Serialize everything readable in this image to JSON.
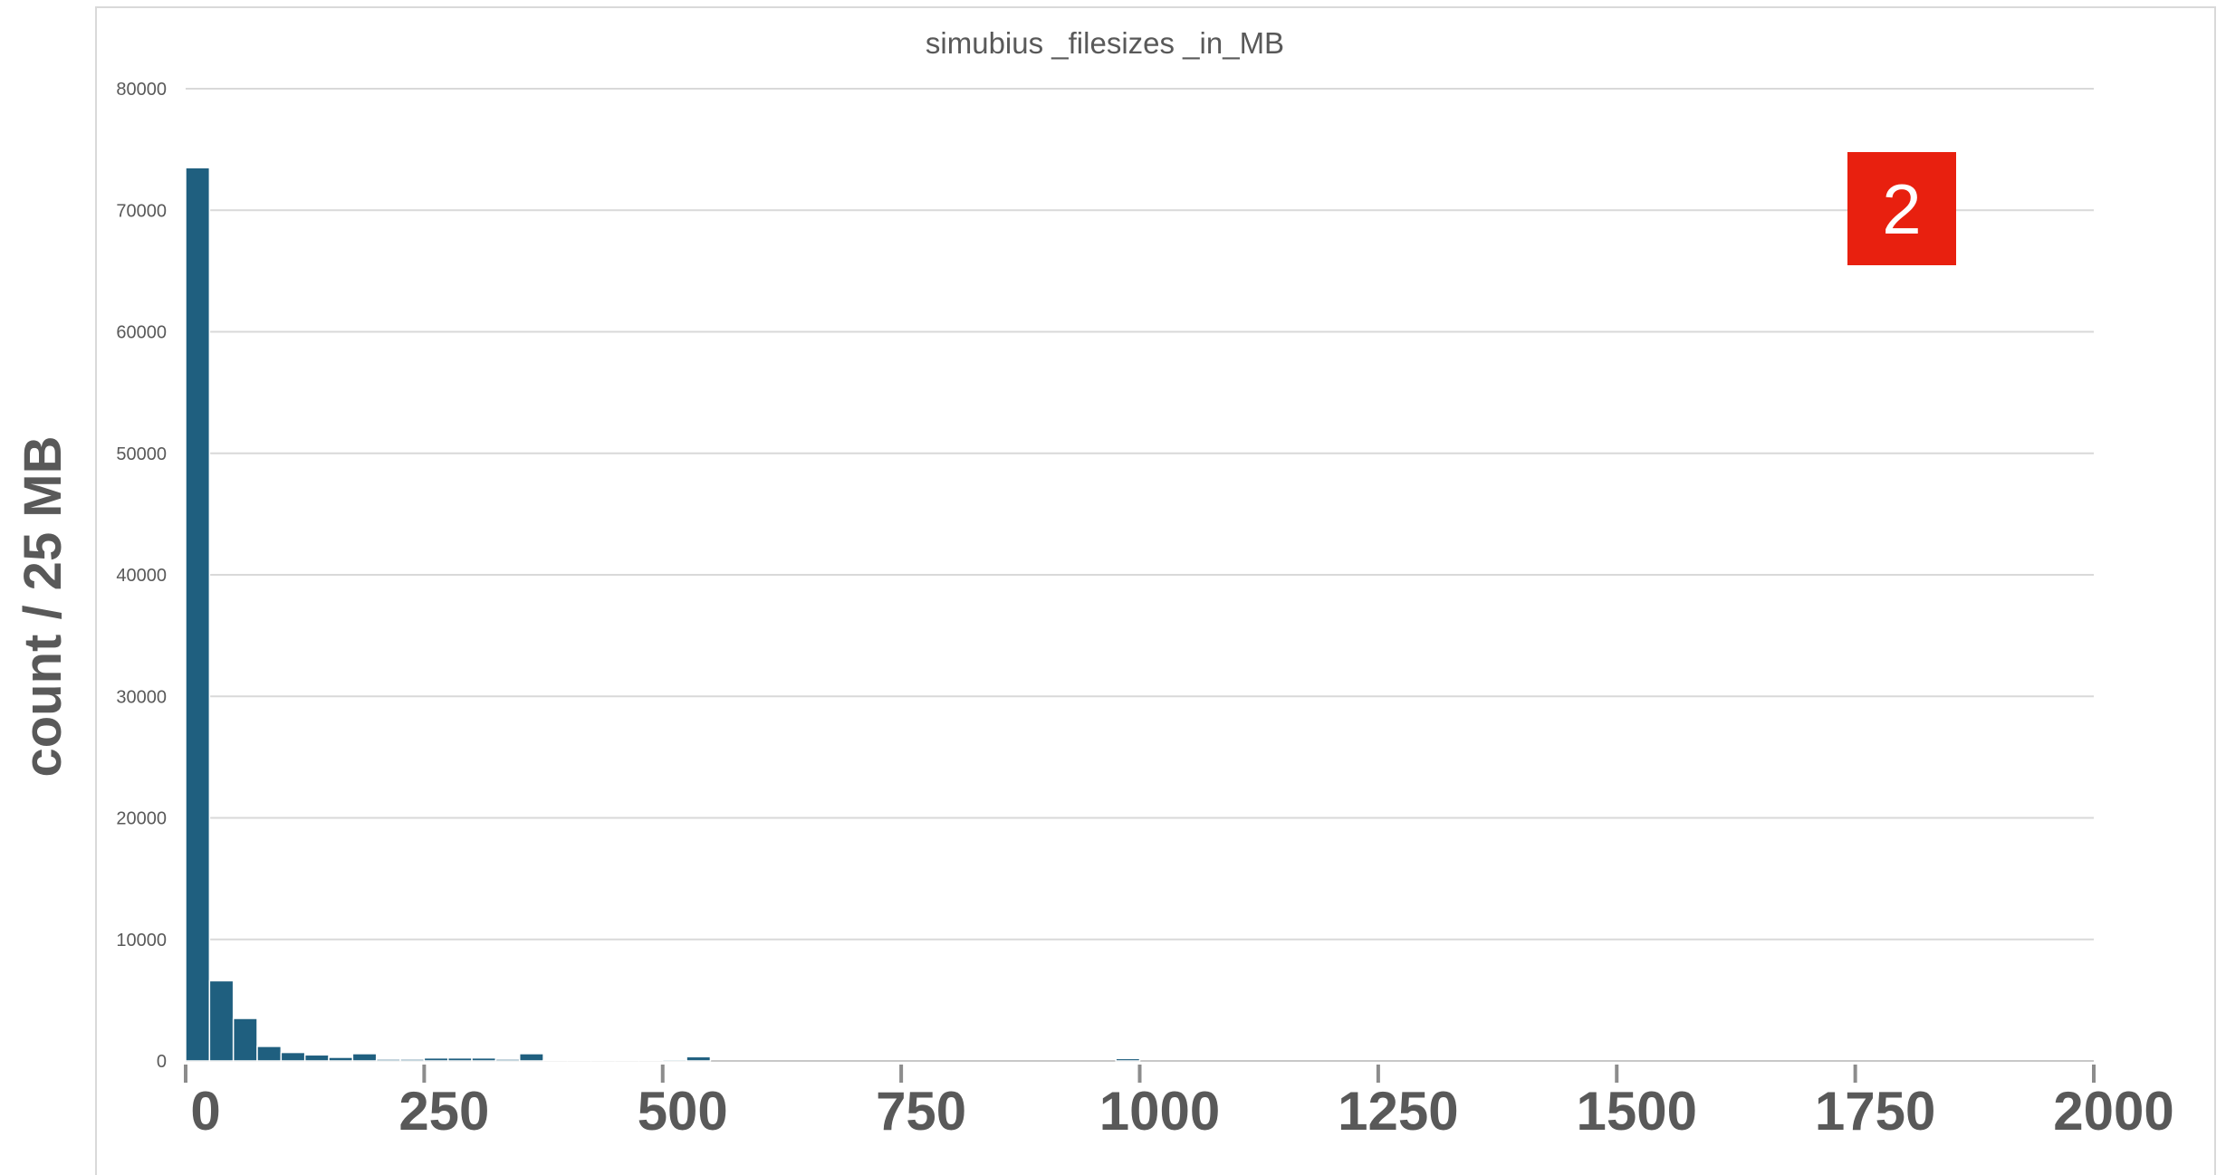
{
  "chart_data": {
    "type": "bar",
    "title": "simubius _filesizes _in_MB",
    "xlabel": "",
    "ylabel": "count / 25 MB",
    "xlim": [
      0,
      2000
    ],
    "ylim": [
      0,
      80000
    ],
    "y_ticks": [
      "0",
      "10000",
      "20000",
      "30000",
      "40000",
      "50000",
      "60000",
      "70000",
      "80000"
    ],
    "x_ticks": [
      "0",
      "250",
      "500",
      "750",
      "1000",
      "1250",
      "1500",
      "1750",
      "2000"
    ],
    "grid": true,
    "legend": "none",
    "bin_width": 25,
    "bins": [
      {
        "x": 0,
        "value": 73500
      },
      {
        "x": 25,
        "value": 6600
      },
      {
        "x": 50,
        "value": 3500
      },
      {
        "x": 75,
        "value": 1200
      },
      {
        "x": 100,
        "value": 700
      },
      {
        "x": 125,
        "value": 500
      },
      {
        "x": 150,
        "value": 300
      },
      {
        "x": 175,
        "value": 600
      },
      {
        "x": 200,
        "value": 150
      },
      {
        "x": 225,
        "value": 150
      },
      {
        "x": 250,
        "value": 250
      },
      {
        "x": 275,
        "value": 250
      },
      {
        "x": 300,
        "value": 250
      },
      {
        "x": 325,
        "value": 150
      },
      {
        "x": 350,
        "value": 600
      },
      {
        "x": 375,
        "value": 50
      },
      {
        "x": 400,
        "value": 50
      },
      {
        "x": 425,
        "value": 100
      },
      {
        "x": 450,
        "value": 50
      },
      {
        "x": 475,
        "value": 30
      },
      {
        "x": 500,
        "value": 120
      },
      {
        "x": 525,
        "value": 350
      },
      {
        "x": 975,
        "value": 200
      }
    ],
    "bar_color": "#1f5f7f"
  },
  "annotation": {
    "badge_label": "2",
    "badge_color": "#e8200f"
  }
}
